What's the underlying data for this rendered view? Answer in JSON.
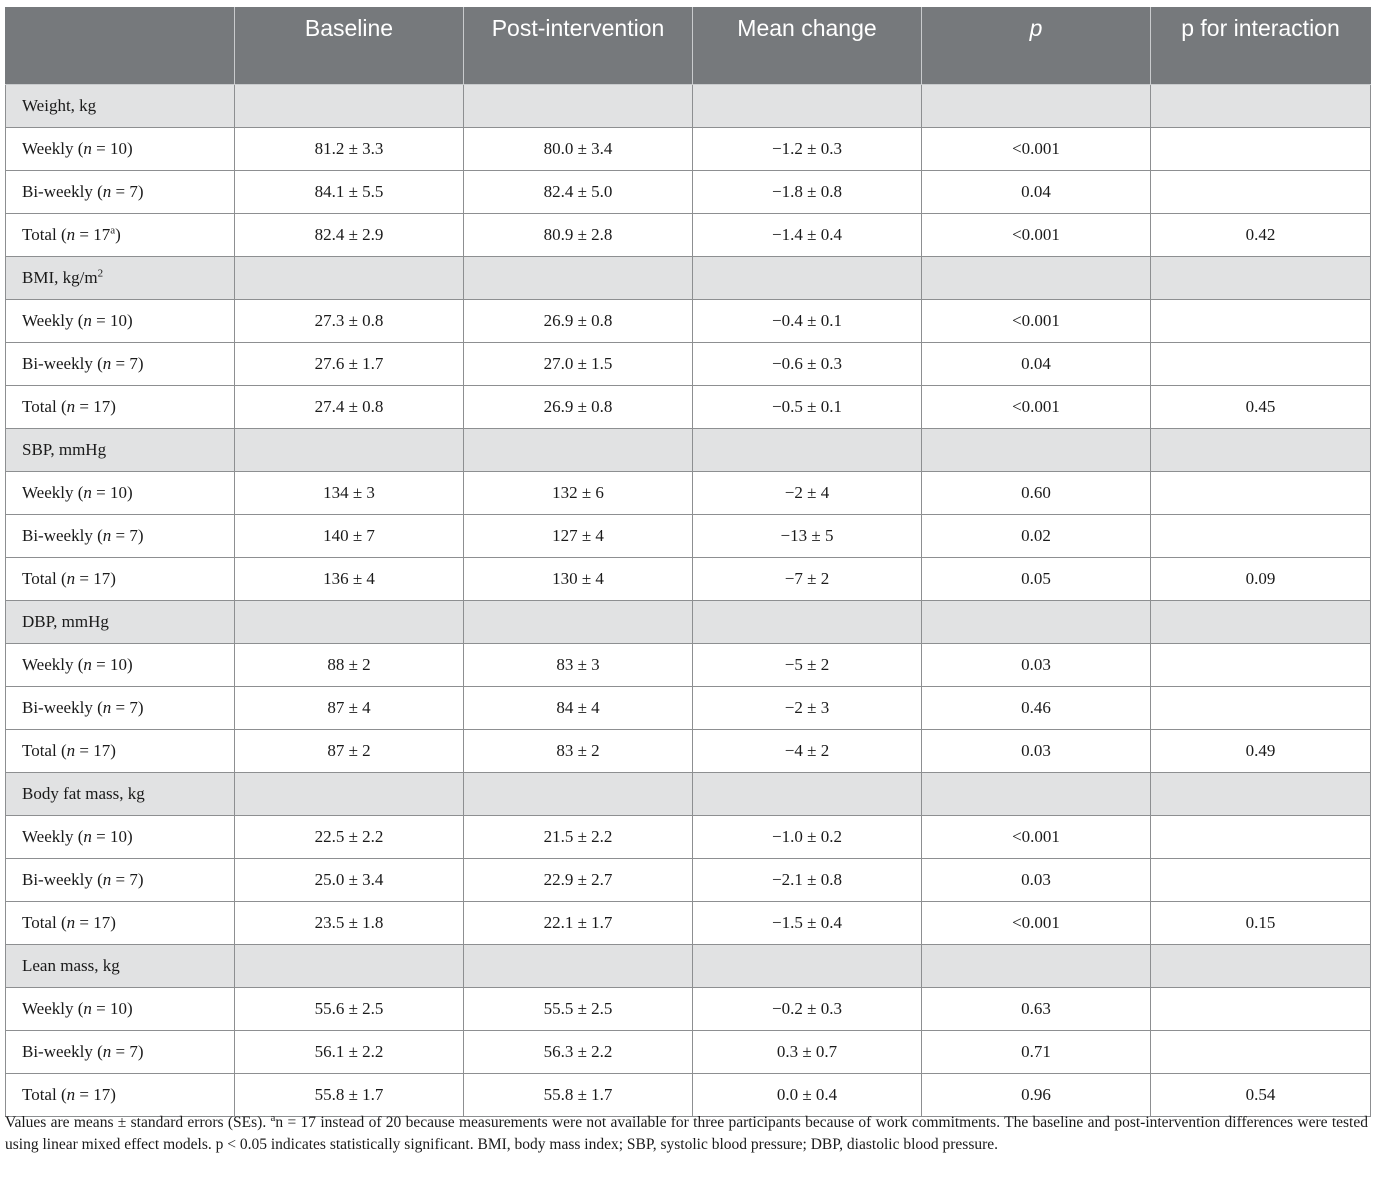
{
  "table": {
    "headers": [
      "",
      "Baseline",
      "Post-intervention",
      "Mean change",
      "p",
      "p for interaction"
    ],
    "sections": [
      {
        "label": "Weight, kg",
        "rows": [
          {
            "group": "Weekly",
            "n": "n = 10",
            "sup": "",
            "baseline": "81.2 ± 3.3",
            "post": "80.0 ± 3.4",
            "change": "−1.2 ± 0.3",
            "p": "<0.001",
            "interaction": ""
          },
          {
            "group": "Bi-weekly",
            "n": "n = 7",
            "sup": "",
            "baseline": "84.1 ± 5.5",
            "post": "82.4 ± 5.0",
            "change": "−1.8 ± 0.8",
            "p": "0.04",
            "interaction": ""
          },
          {
            "group": "Total",
            "n": "n = 17",
            "sup": "a",
            "baseline": "82.4 ± 2.9",
            "post": "80.9 ± 2.8",
            "change": "−1.4 ± 0.4",
            "p": "<0.001",
            "interaction": "0.42"
          }
        ]
      },
      {
        "label": "BMI, kg/m",
        "label_sup": "2",
        "rows": [
          {
            "group": "Weekly",
            "n": "n = 10",
            "sup": "",
            "baseline": "27.3 ± 0.8",
            "post": "26.9 ± 0.8",
            "change": "−0.4 ± 0.1",
            "p": "<0.001",
            "interaction": ""
          },
          {
            "group": "Bi-weekly",
            "n": "n = 7",
            "sup": "",
            "baseline": "27.6 ± 1.7",
            "post": "27.0 ± 1.5",
            "change": "−0.6 ± 0.3",
            "p": "0.04",
            "interaction": ""
          },
          {
            "group": "Total",
            "n": "n = 17",
            "sup": "",
            "baseline": "27.4 ± 0.8",
            "post": "26.9 ± 0.8",
            "change": "−0.5 ± 0.1",
            "p": "<0.001",
            "interaction": "0.45"
          }
        ]
      },
      {
        "label": "SBP, mmHg",
        "rows": [
          {
            "group": "Weekly",
            "n": "n = 10",
            "sup": "",
            "baseline": "134 ± 3",
            "post": "132 ± 6",
            "change": "−2 ± 4",
            "p": "0.60",
            "interaction": ""
          },
          {
            "group": "Bi-weekly",
            "n": "n = 7",
            "sup": "",
            "baseline": "140 ± 7",
            "post": "127 ± 4",
            "change": "−13 ± 5",
            "p": "0.02",
            "interaction": ""
          },
          {
            "group": "Total",
            "n": "n = 17",
            "sup": "",
            "baseline": "136 ± 4",
            "post": "130 ± 4",
            "change": "−7 ± 2",
            "p": "0.05",
            "interaction": "0.09"
          }
        ]
      },
      {
        "label": "DBP, mmHg",
        "rows": [
          {
            "group": "Weekly",
            "n": "n = 10",
            "sup": "",
            "baseline": "88 ± 2",
            "post": "83 ± 3",
            "change": "−5 ± 2",
            "p": "0.03",
            "interaction": ""
          },
          {
            "group": "Bi-weekly",
            "n": "n = 7",
            "sup": "",
            "baseline": "87 ± 4",
            "post": "84 ± 4",
            "change": "−2 ± 3",
            "p": "0.46",
            "interaction": ""
          },
          {
            "group": "Total",
            "n": "n = 17",
            "sup": "",
            "baseline": "87 ± 2",
            "post": "83 ± 2",
            "change": "−4 ± 2",
            "p": "0.03",
            "interaction": "0.49"
          }
        ]
      },
      {
        "label": "Body fat mass, kg",
        "rows": [
          {
            "group": "Weekly",
            "n": "n = 10",
            "sup": "",
            "baseline": "22.5 ± 2.2",
            "post": "21.5 ± 2.2",
            "change": "−1.0 ± 0.2",
            "p": "<0.001",
            "interaction": ""
          },
          {
            "group": "Bi-weekly",
            "n": "n = 7",
            "sup": "",
            "baseline": "25.0 ± 3.4",
            "post": "22.9 ± 2.7",
            "change": "−2.1 ± 0.8",
            "p": "0.03",
            "interaction": ""
          },
          {
            "group": "Total",
            "n": "n = 17",
            "sup": "",
            "baseline": "23.5 ± 1.8",
            "post": "22.1 ± 1.7",
            "change": "−1.5 ± 0.4",
            "p": "<0.001",
            "interaction": "0.15"
          }
        ]
      },
      {
        "label": "Lean mass, kg",
        "rows": [
          {
            "group": "Weekly",
            "n": "n = 10",
            "sup": "",
            "baseline": "55.6 ± 2.5",
            "post": "55.5 ± 2.5",
            "change": "−0.2 ± 0.3",
            "p": "0.63",
            "interaction": ""
          },
          {
            "group": "Bi-weekly",
            "n": "n = 7",
            "sup": "",
            "baseline": "56.1 ± 2.2",
            "post": "56.3 ± 2.2",
            "change": "0.3 ± 0.7",
            "p": "0.71",
            "interaction": ""
          },
          {
            "group": "Total",
            "n": "n = 17",
            "sup": "",
            "baseline": "55.8 ± 1.7",
            "post": "55.8 ± 1.7",
            "change": "0.0 ± 0.4",
            "p": "0.96",
            "interaction": "0.54"
          }
        ]
      }
    ]
  },
  "footnote": {
    "lead": "Values are means ± standard errors (SEs). ",
    "sup": "a",
    "text": "n = 17 instead of 20 because measurements were not available for three participants because of work commitments. The baseline and post-intervention differences were tested using linear mixed effect models. p < 0.05 indicates statistically significant. BMI, body mass index; SBP, systolic blood pressure; DBP, diastolic blood pressure."
  },
  "colors": {
    "header_bg": "#76797c",
    "section_bg": "#e1e2e3",
    "border": "#8d8f91"
  }
}
